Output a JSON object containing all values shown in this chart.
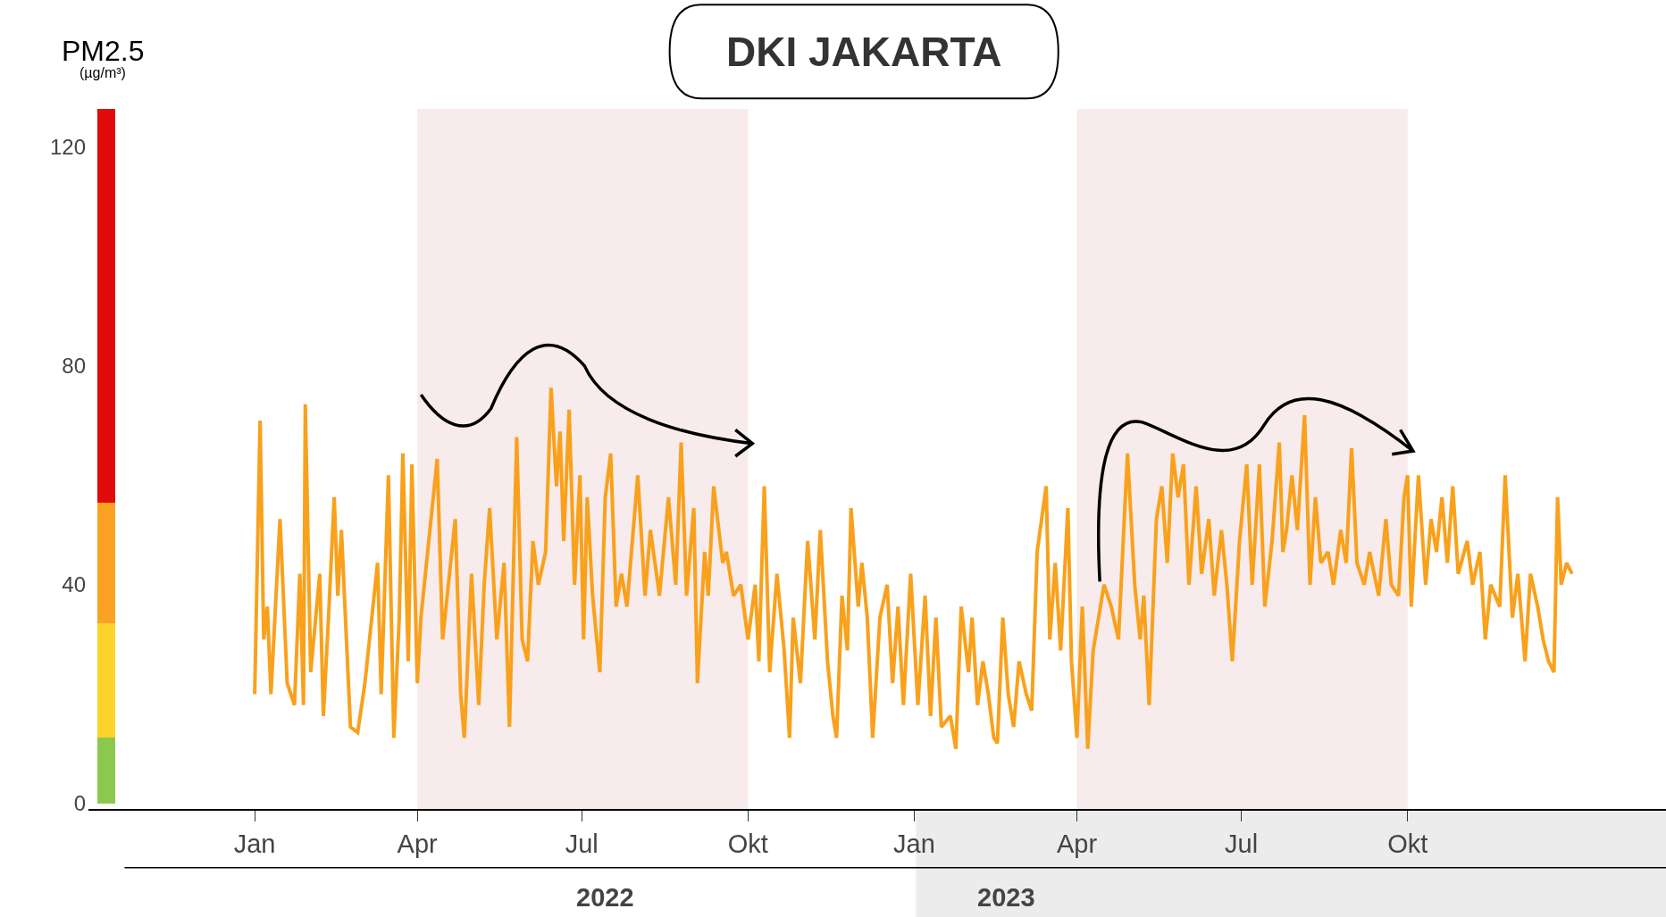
{
  "chart_data": {
    "type": "line",
    "title": "DKI JAKARTA",
    "ylabel": "PM2.5\n(µg/m³)",
    "x": [
      "2022-01-01",
      "2022-01-04",
      "2022-01-06",
      "2022-01-08",
      "2022-01-10",
      "2022-01-15",
      "2022-01-19",
      "2022-01-23",
      "2022-01-26",
      "2022-01-28",
      "2022-01-29",
      "2022-02-01",
      "2022-02-06",
      "2022-02-08",
      "2022-02-11",
      "2022-02-14",
      "2022-02-16",
      "2022-02-18",
      "2022-02-23",
      "2022-02-27",
      "2022-03-03",
      "2022-03-10",
      "2022-03-12",
      "2022-03-16",
      "2022-03-19",
      "2022-03-22",
      "2022-03-24",
      "2022-03-27",
      "2022-03-29",
      "2022-04-01",
      "2022-04-03",
      "2022-04-12",
      "2022-04-15",
      "2022-04-22",
      "2022-04-25",
      "2022-04-27",
      "2022-05-01",
      "2022-05-05",
      "2022-05-08",
      "2022-05-11",
      "2022-05-15",
      "2022-05-19",
      "2022-05-22",
      "2022-05-26",
      "2022-05-29",
      "2022-06-01",
      "2022-06-04",
      "2022-06-07",
      "2022-06-11",
      "2022-06-14",
      "2022-06-17",
      "2022-06-19",
      "2022-06-21",
      "2022-06-24",
      "2022-06-27",
      "2022-06-30",
      "2022-07-02",
      "2022-07-04",
      "2022-07-07",
      "2022-07-11",
      "2022-07-14",
      "2022-07-17",
      "2022-07-20",
      "2022-07-23",
      "2022-07-26",
      "2022-08-01",
      "2022-08-05",
      "2022-08-08",
      "2022-08-13",
      "2022-08-18",
      "2022-08-22",
      "2022-08-25",
      "2022-08-28",
      "2022-09-01",
      "2022-09-03",
      "2022-09-07",
      "2022-09-09",
      "2022-09-12",
      "2022-09-17",
      "2022-09-19",
      "2022-09-23",
      "2022-09-27",
      "2022-10-01",
      "2022-10-05",
      "2022-10-07",
      "2022-10-10",
      "2022-10-13",
      "2022-10-17",
      "2022-10-21",
      "2022-10-24",
      "2022-10-26",
      "2022-10-30",
      "2022-11-03",
      "2022-11-07",
      "2022-11-10",
      "2022-11-14",
      "2022-11-17",
      "2022-11-19",
      "2022-11-22",
      "2022-11-25",
      "2022-11-27",
      "2022-12-01",
      "2022-12-03",
      "2022-12-06",
      "2022-12-09",
      "2022-12-13",
      "2022-12-17",
      "2022-12-20",
      "2022-12-23",
      "2022-12-26",
      "2022-12-30",
      "2023-01-03",
      "2023-01-07",
      "2023-01-10",
      "2023-01-13",
      "2023-01-16",
      "2023-01-21",
      "2023-01-24",
      "2023-01-27",
      "2023-01-31",
      "2023-02-02",
      "2023-02-05",
      "2023-02-08",
      "2023-02-11",
      "2023-02-14",
      "2023-02-16",
      "2023-02-19",
      "2023-02-22",
      "2023-02-25",
      "2023-02-28",
      "2023-03-04",
      "2023-03-07",
      "2023-03-10",
      "2023-03-15",
      "2023-03-17",
      "2023-03-20",
      "2023-03-23",
      "2023-03-27",
      "2023-03-29",
      "2023-04-01",
      "2023-04-04",
      "2023-04-07",
      "2023-04-10",
      "2023-04-14",
      "2023-04-16",
      "2023-04-20",
      "2023-04-24",
      "2023-04-29",
      "2023-05-03",
      "2023-05-06",
      "2023-05-08",
      "2023-05-11",
      "2023-05-15",
      "2023-05-18",
      "2023-05-21",
      "2023-05-24",
      "2023-05-27",
      "2023-05-30",
      "2023-06-02",
      "2023-06-06",
      "2023-06-09",
      "2023-06-13",
      "2023-06-16",
      "2023-06-20",
      "2023-06-23",
      "2023-06-26",
      "2023-06-30",
      "2023-07-04",
      "2023-07-07",
      "2023-07-11",
      "2023-07-14",
      "2023-07-18",
      "2023-07-22",
      "2023-07-24",
      "2023-07-26",
      "2023-07-29",
      "2023-08-01",
      "2023-08-05",
      "2023-08-08",
      "2023-08-11",
      "2023-08-14",
      "2023-08-18",
      "2023-08-21",
      "2023-08-25",
      "2023-08-28",
      "2023-08-31",
      "2023-09-03",
      "2023-09-07",
      "2023-09-10",
      "2023-09-15",
      "2023-09-19",
      "2023-09-22",
      "2023-09-26",
      "2023-09-29",
      "2023-10-01",
      "2023-10-03",
      "2023-10-07",
      "2023-10-11",
      "2023-10-14",
      "2023-10-17",
      "2023-10-20",
      "2023-10-23",
      "2023-10-26",
      "2023-10-29",
      "2023-11-03",
      "2023-11-06",
      "2023-11-10",
      "2023-11-13",
      "2023-11-16",
      "2023-11-21",
      "2023-11-24",
      "2023-11-28",
      "2023-12-01",
      "2023-12-05",
      "2023-12-08",
      "2023-12-12",
      "2023-12-15",
      "2023-12-18",
      "2023-12-21",
      "2023-12-23",
      "2023-12-25",
      "2023-12-28",
      "2023-12-31"
    ],
    "series": [
      {
        "type": "bar",
        "x": [
          "2021-10-11"
        ],
        "color": "#8cc84b",
        "values": [
          12
        ]
      },
      {
        "type": "bar",
        "x": [
          "2021-10-11"
        ],
        "color": "#fdd32a",
        "values": [
          21
        ]
      },
      {
        "type": "bar",
        "x": [
          "2021-10-11"
        ],
        "color": "#fba124",
        "values": [
          22
        ]
      },
      {
        "type": "bar",
        "x": [
          "2021-10-11"
        ],
        "color": "#e00b0b",
        "values": [
          72
        ]
      },
      {
        "color": "#f9a11c",
        "values": [
          20,
          70,
          30,
          36,
          20,
          52,
          22,
          18,
          42,
          18,
          73,
          24,
          42,
          16,
          35,
          56,
          38,
          50,
          14,
          13,
          22,
          44,
          20,
          60,
          12,
          34,
          64,
          26,
          62,
          22,
          34,
          63,
          30,
          52,
          20,
          12,
          42,
          18,
          40,
          54,
          30,
          44,
          14,
          67,
          30,
          26,
          48,
          40,
          46,
          76,
          58,
          68,
          48,
          72,
          40,
          60,
          30,
          56,
          38,
          24,
          56,
          64,
          36,
          42,
          36,
          60,
          38,
          50,
          38,
          56,
          40,
          66,
          38,
          54,
          22,
          46,
          38,
          58,
          44,
          46,
          38,
          40,
          30,
          40,
          26,
          58,
          24,
          42,
          28,
          12,
          34,
          22,
          48,
          30,
          50,
          26,
          16,
          12,
          38,
          28,
          54,
          36,
          44,
          34,
          12,
          34,
          40,
          22,
          36,
          18,
          42,
          18,
          38,
          16,
          34,
          14,
          16,
          10,
          36,
          24,
          34,
          18,
          26,
          20,
          12,
          11,
          34,
          20,
          14,
          26,
          20,
          17,
          46,
          58,
          30,
          44,
          28,
          54,
          26,
          12,
          36,
          10,
          28,
          36,
          40,
          36,
          30,
          64,
          40,
          30,
          38,
          18,
          52,
          58,
          44,
          64,
          56,
          62,
          40,
          58,
          42,
          52,
          38,
          50,
          40,
          26,
          48,
          62,
          40,
          62,
          36,
          48,
          66,
          46,
          50,
          60,
          50,
          71,
          40,
          56,
          44,
          46,
          40,
          50,
          44,
          65,
          44,
          40,
          46,
          38,
          52,
          40,
          38,
          56,
          60,
          36,
          60,
          40,
          52,
          46,
          56,
          44,
          58,
          42,
          48,
          40,
          46,
          30,
          40,
          36,
          60,
          34,
          42,
          26,
          42,
          36,
          30,
          26,
          24,
          56,
          40,
          44,
          42
        ]
      }
    ],
    "xlim": [
      "2021-10-01",
      "2024-02-21"
    ],
    "ylim": [
      -1,
      127
    ],
    "xticks": [
      {
        "value": "2022-01-01",
        "label": "Jan"
      },
      {
        "value": "2022-04-01",
        "label": "Apr"
      },
      {
        "value": "2022-07-01",
        "label": "Jul"
      },
      {
        "value": "2022-10-01",
        "label": "Okt"
      },
      {
        "value": "2023-01-01",
        "label": "Jan"
      },
      {
        "value": "2023-04-01",
        "label": "Apr"
      },
      {
        "value": "2023-07-01",
        "label": "Jul"
      },
      {
        "value": "2023-10-01",
        "label": "Okt"
      }
    ],
    "yticks": [
      0,
      40,
      80,
      120
    ],
    "bands": [
      {
        "axis": "x",
        "from": "2022-04-01",
        "to": "2022-10-01",
        "color": "#f7ebeb"
      },
      {
        "axis": "x",
        "from": "2023-04-01",
        "to": "2023-10-01",
        "color": "#f7ebeb"
      }
    ],
    "annotations": [
      "2022",
      "2023"
    ],
    "stacked": true,
    "grid": false,
    "legend": false,
    "marker": "none",
    "line_style": "solid"
  }
}
